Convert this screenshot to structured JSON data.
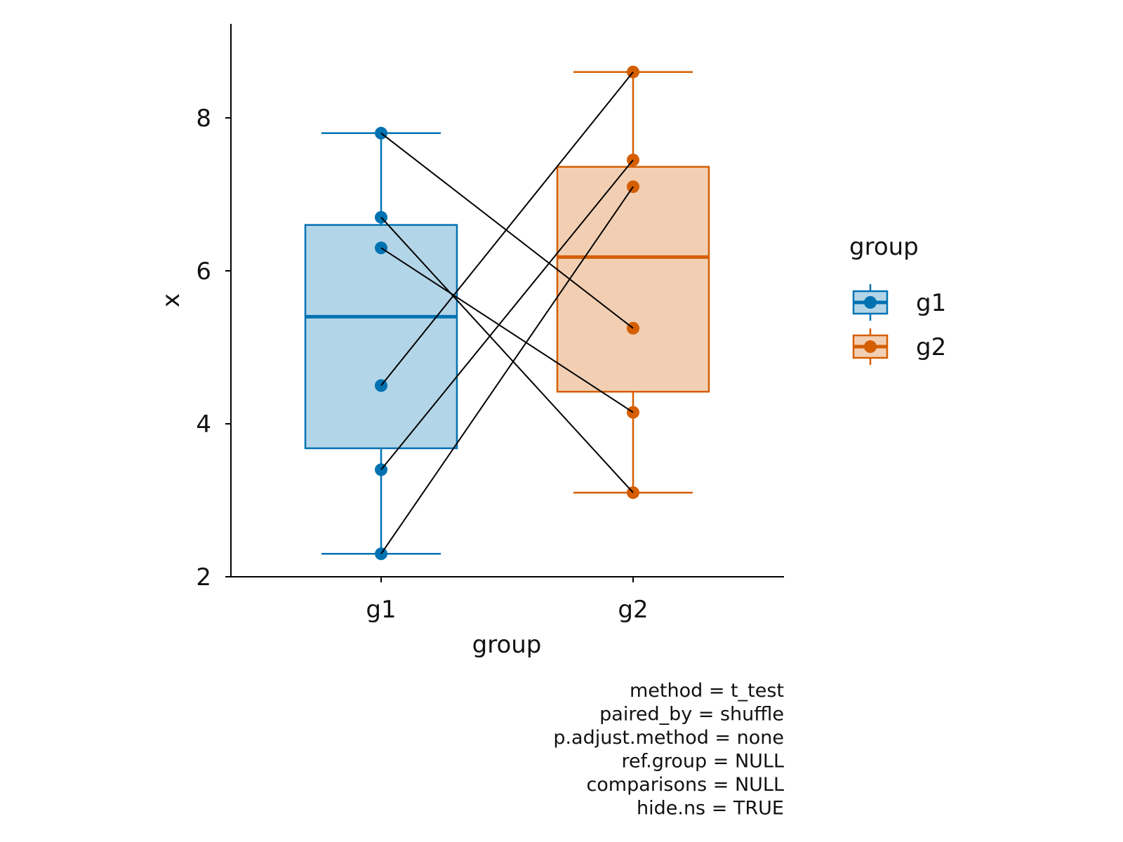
{
  "chart_data": {
    "type": "box",
    "title": "",
    "xlabel": "group",
    "ylabel": "x",
    "ylim": [
      2,
      9.25
    ],
    "y_ticks": [
      "2",
      "4",
      "6",
      "8"
    ],
    "categories": [
      "g1",
      "g2"
    ],
    "grid": false,
    "legend": {
      "title": "group",
      "placement": "right"
    },
    "series": [
      {
        "name": "g1",
        "color": "#0072B2",
        "fill": "#B3D5E8",
        "box": {
          "whisker_low": 2.3,
          "q1": 3.68,
          "median": 5.4,
          "q3": 6.6,
          "whisker_high": 7.8
        },
        "points": [
          7.8,
          6.7,
          6.3,
          4.5,
          3.4,
          2.3
        ]
      },
      {
        "name": "g2",
        "color": "#D55E00",
        "fill": "#F2CFB3",
        "box": {
          "whisker_low": 3.1,
          "q1": 4.42,
          "median": 6.18,
          "q3": 7.36,
          "whisker_high": 8.6
        },
        "points": [
          8.6,
          7.45,
          7.1,
          5.25,
          4.15,
          3.1
        ]
      }
    ],
    "pairs": [
      [
        7.8,
        5.25
      ],
      [
        6.7,
        3.1
      ],
      [
        6.3,
        4.15
      ],
      [
        4.5,
        8.6
      ],
      [
        3.4,
        7.45
      ],
      [
        2.3,
        7.1
      ]
    ],
    "caption": [
      "method = t_test",
      "paired_by = shuffle",
      "p.adjust.method = none",
      "ref.group = NULL",
      "comparisons = NULL",
      "hide.ns = TRUE"
    ]
  }
}
